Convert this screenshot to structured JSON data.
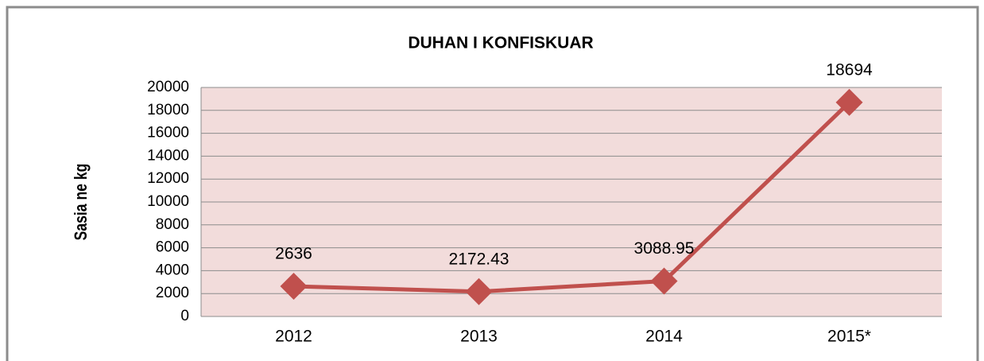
{
  "chart_data": {
    "type": "line",
    "title": "DUHAN I KONFISKUAR",
    "y_label": "Sasia ne kg",
    "categories": [
      "2012",
      "2013",
      "2014",
      "2015*"
    ],
    "series": [
      {
        "name": "Sasia ne kg",
        "color": "#c0504d",
        "values": [
          2636,
          2172.43,
          3088.95,
          18694
        ]
      }
    ],
    "ylim": [
      0,
      20000
    ],
    "yticks": [
      0,
      2000,
      4000,
      6000,
      8000,
      10000,
      12000,
      14000,
      16000,
      18000,
      20000
    ],
    "grid": true,
    "data_labels": true
  }
}
